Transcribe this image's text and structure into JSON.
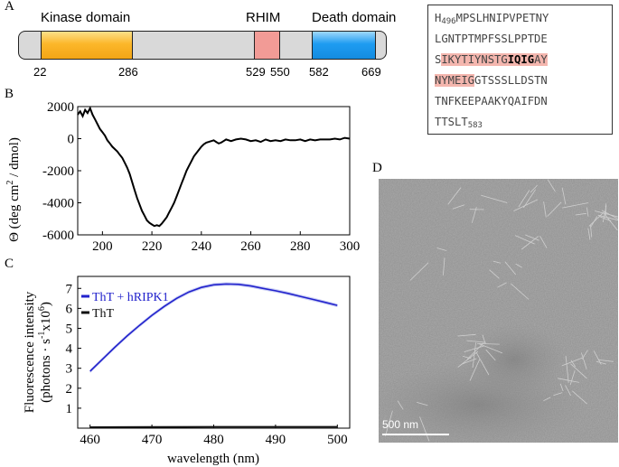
{
  "panels": {
    "a": "A",
    "b": "B",
    "c": "C",
    "d": "D"
  },
  "domain_map": {
    "domains": [
      {
        "label": "Kinase domain",
        "start": 22,
        "end": 286,
        "color": "#fcb72a"
      },
      {
        "label": "RHIM",
        "start": 529,
        "end": 550,
        "color": "#f29b96"
      },
      {
        "label": "Death domain",
        "start": 582,
        "end": 669,
        "color": "#1e9cf1"
      }
    ],
    "positions": [
      "22",
      "286",
      "529",
      "550",
      "582",
      "669"
    ]
  },
  "sequence": {
    "line1_start_residue": "H",
    "line1_start_num": "496",
    "line1_rest": "MPSLHNIPVPETNY",
    "line2": "LGNTPTMPFSSLPPTDE",
    "line3_plain": "S",
    "line3_hl1": "IKYTIYNSTG",
    "line3_bold": "IQIG",
    "line3_hl2": "AY",
    "line4_hl": "NYMEIG",
    "line4_plain": "GTSSSLLDSTN",
    "line5": "TNFKEEPAAKYQAIFDN",
    "line6_text": "TTSLT",
    "line6_end_num": "583"
  },
  "chart_data": [
    {
      "type": "line",
      "panel": "B",
      "ylabel_parts": [
        "Θ (deg cm",
        "2",
        " / dmol)"
      ],
      "xlim": [
        190,
        300
      ],
      "ylim": [
        -6000,
        2000
      ],
      "xticks": [
        "200",
        "220",
        "240",
        "260",
        "280",
        "300"
      ],
      "yticks": [
        "2000",
        "0",
        "-2000",
        "-4000",
        "-6000"
      ],
      "series": [
        {
          "x": [
            190,
            191,
            192,
            193,
            194,
            195,
            196,
            197,
            198,
            199,
            200,
            201,
            202,
            203,
            204,
            205,
            206,
            207,
            208,
            209,
            210,
            211,
            212,
            213,
            214,
            215,
            216,
            217,
            218,
            219,
            220,
            221,
            222,
            223,
            224,
            225,
            226,
            227,
            228,
            229,
            230,
            231,
            232,
            233,
            234,
            235,
            236,
            237,
            238,
            239,
            240,
            241,
            242,
            243,
            244,
            245,
            246,
            247,
            248,
            249,
            250,
            252,
            254,
            256,
            258,
            260,
            262,
            264,
            266,
            268,
            270,
            272,
            274,
            276,
            278,
            280,
            282,
            284,
            286,
            288,
            290,
            292,
            294,
            296,
            298,
            300
          ],
          "y": [
            1500,
            1700,
            1400,
            1800,
            1600,
            1900,
            1500,
            1200,
            900,
            600,
            400,
            200,
            -100,
            -300,
            -500,
            -650,
            -800,
            -1000,
            -1200,
            -1500,
            -1800,
            -2200,
            -2700,
            -3200,
            -3700,
            -4100,
            -4500,
            -4800,
            -5100,
            -5250,
            -5350,
            -5450,
            -5400,
            -5450,
            -5300,
            -5100,
            -4900,
            -4600,
            -4300,
            -4000,
            -3600,
            -3200,
            -2800,
            -2400,
            -2000,
            -1700,
            -1400,
            -1100,
            -900,
            -700,
            -500,
            -350,
            -250,
            -200,
            -150,
            -100,
            -200,
            -300,
            -250,
            -150,
            -50,
            -150,
            -50,
            0,
            -50,
            -150,
            -100,
            -200,
            -50,
            -150,
            -100,
            -150,
            -50,
            -100,
            -100,
            -50,
            -150,
            -50,
            -100,
            -50,
            -50,
            -50,
            0,
            -50,
            50,
            0
          ]
        }
      ]
    },
    {
      "type": "line",
      "panel": "C",
      "xlabel": "wavelength (nm)",
      "ylabel_line1": "Fluorescence intensity",
      "ylabel_line2_parts": [
        "(photons · s",
        "-1",
        "x10",
        "6",
        ")"
      ],
      "xlim": [
        458,
        502
      ],
      "ylim": [
        0,
        7.6
      ],
      "xticks": [
        "460",
        "470",
        "480",
        "490",
        "500"
      ],
      "yticks": [
        "7",
        "6",
        "5",
        "4",
        "3",
        "2",
        "1"
      ],
      "series": [
        {
          "name": "ThT + hRIPK1",
          "color": "#2222cc",
          "x": [
            460,
            462,
            464,
            466,
            468,
            470,
            472,
            474,
            476,
            478,
            480,
            482,
            484,
            486,
            488,
            490,
            492,
            494,
            496,
            498,
            500
          ],
          "y": [
            2.85,
            3.45,
            4.05,
            4.62,
            5.15,
            5.65,
            6.1,
            6.5,
            6.82,
            7.05,
            7.18,
            7.22,
            7.2,
            7.12,
            7.0,
            6.88,
            6.75,
            6.6,
            6.45,
            6.3,
            6.15
          ]
        },
        {
          "name": "ThT",
          "color": "#111111",
          "x": [
            460,
            470,
            480,
            490,
            500
          ],
          "y": [
            0.05,
            0.06,
            0.07,
            0.07,
            0.07
          ]
        }
      ]
    }
  ],
  "micrograph": {
    "scale_bar_label": "500 nm"
  }
}
